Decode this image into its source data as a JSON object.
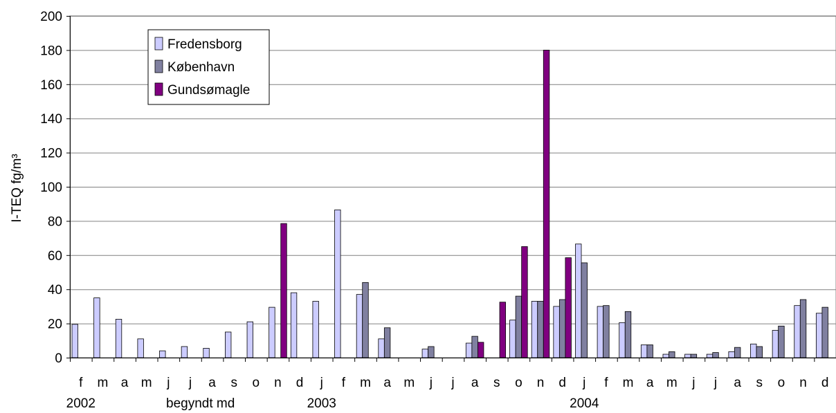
{
  "chart_data": {
    "type": "bar",
    "ylabel": "I-TEQ  fg/m³",
    "xlabel": "begyndt md",
    "ylim": [
      0,
      200
    ],
    "yticks": [
      0,
      20,
      40,
      60,
      80,
      100,
      120,
      140,
      160,
      180,
      200
    ],
    "categories": [
      "f",
      "m",
      "a",
      "m",
      "j",
      "j",
      "a",
      "s",
      "o",
      "n",
      "d",
      "j",
      "f",
      "m",
      "a",
      "m",
      "j",
      "j",
      "a",
      "s",
      "o",
      "n",
      "d",
      "j",
      "f",
      "m",
      "a",
      "m",
      "j",
      "j",
      "a",
      "s",
      "o",
      "n",
      "d"
    ],
    "year_labels": [
      {
        "label": "2002",
        "category_index": 0
      },
      {
        "label": "2003",
        "category_index": 11
      },
      {
        "label": "2004",
        "category_index": 23
      }
    ],
    "grid": true,
    "legend_position": "top-left",
    "series": [
      {
        "name": "Fredensborg",
        "color": "#ccccff",
        "values": [
          19.5,
          35,
          22.5,
          11,
          4,
          6.5,
          5.5,
          15,
          21,
          29.5,
          38,
          33,
          86.5,
          37,
          11,
          null,
          5,
          null,
          8.5,
          null,
          22,
          33,
          30,
          66.5,
          30,
          20.5,
          7.5,
          2,
          2,
          2,
          3.5,
          8,
          16,
          30.5,
          26
        ]
      },
      {
        "name": "København",
        "color": "#8080a0",
        "values": [
          null,
          null,
          null,
          null,
          null,
          null,
          null,
          null,
          null,
          null,
          null,
          null,
          null,
          44,
          17.5,
          null,
          6.5,
          null,
          12.5,
          null,
          36,
          33,
          34,
          55.5,
          30.5,
          27,
          7.5,
          3.5,
          2,
          3,
          6,
          6.5,
          18.5,
          34,
          29.5
        ]
      },
      {
        "name": "Gundsømagle",
        "color": "#800080",
        "values": [
          null,
          null,
          null,
          null,
          null,
          null,
          null,
          null,
          null,
          78.5,
          null,
          null,
          null,
          null,
          null,
          null,
          null,
          null,
          9,
          32.5,
          65,
          180,
          58.5,
          null,
          null,
          null,
          null,
          null,
          null,
          null,
          null,
          null,
          null,
          null,
          null
        ]
      }
    ]
  }
}
